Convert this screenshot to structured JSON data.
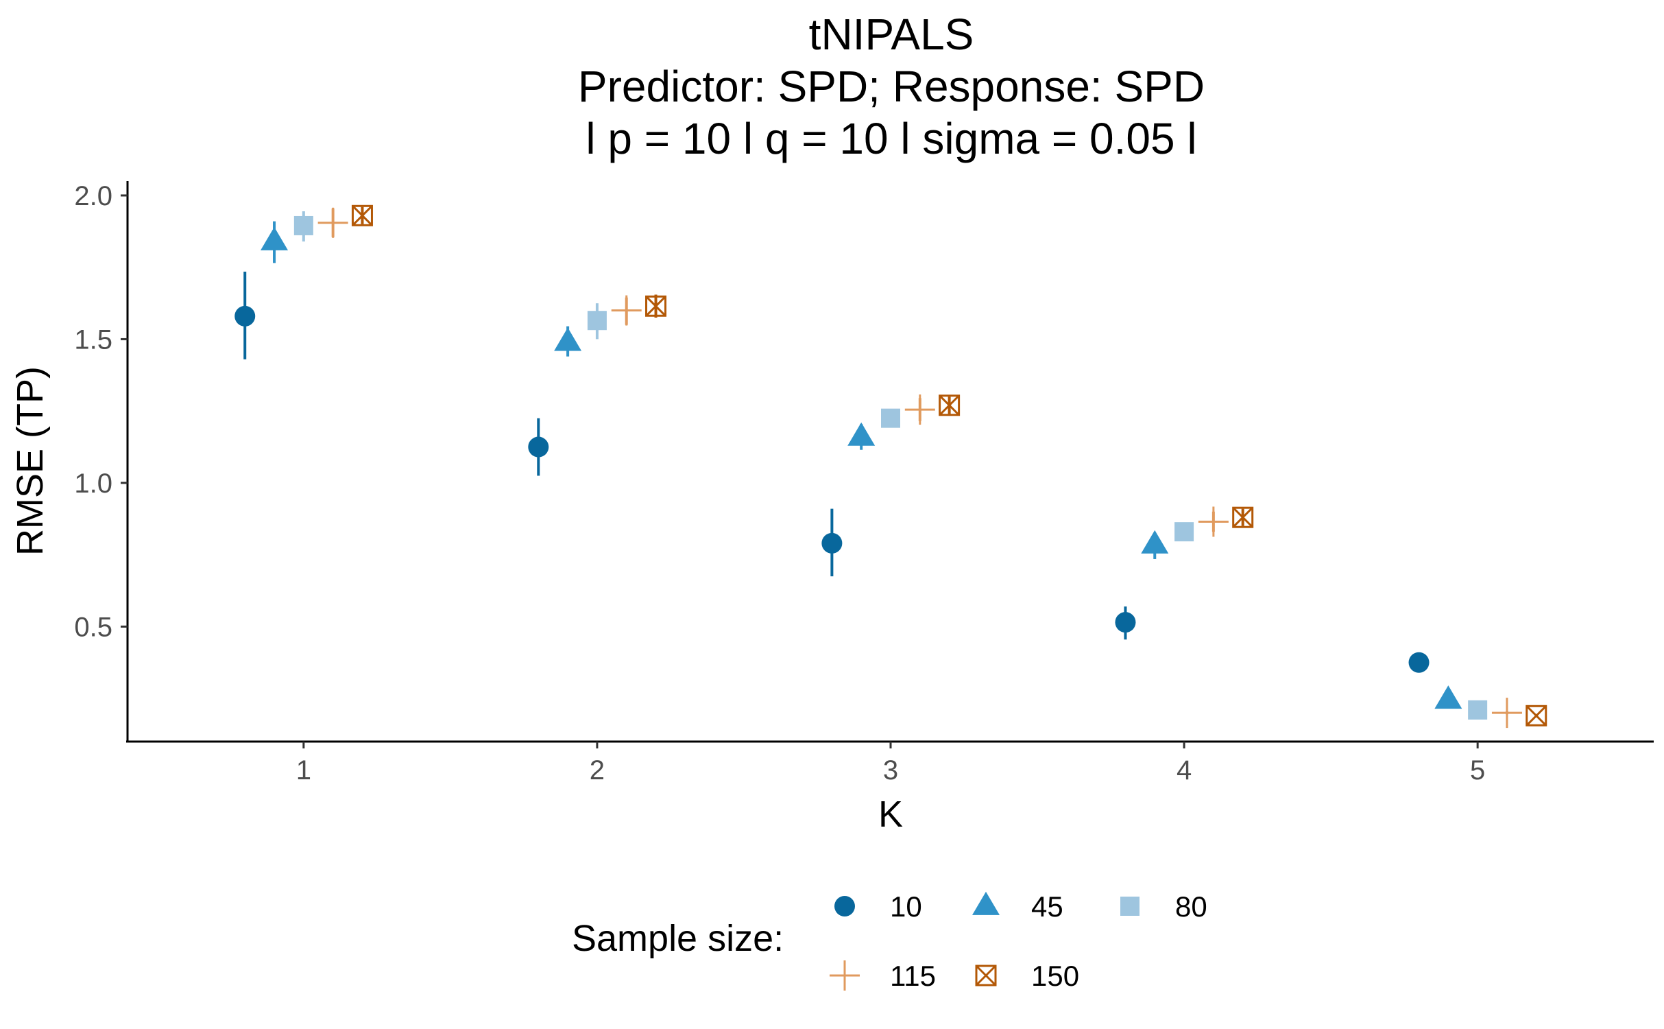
{
  "chart_data": {
    "type": "scatter",
    "title_lines": [
      "tNIPALS",
      "Predictor: SPD; Response: SPD",
      "l p = 10 l q = 10 l sigma = 0.05 l"
    ],
    "xlabel": "K",
    "ylabel": "RMSE (TP)",
    "x_ticks": [
      "1",
      "2",
      "3",
      "4",
      "5"
    ],
    "y_ticks": [
      "0.5",
      "1.0",
      "1.5",
      "2.0"
    ],
    "xlim": [
      0.4,
      5.6
    ],
    "ylim": [
      0.1,
      2.05
    ],
    "dodge_offsets": [
      -0.2,
      -0.1,
      0.0,
      0.1,
      0.2
    ],
    "legend_title": "Sample size:",
    "legend_position": "bottom",
    "grid": false,
    "series": [
      {
        "name": "10",
        "shape": "circle",
        "color": "#08679c",
        "values": [
          1.58,
          1.125,
          0.79,
          0.515,
          0.375
        ],
        "error_low": [
          1.43,
          1.025,
          0.675,
          0.455,
          0.36
        ],
        "error_high": [
          1.735,
          1.225,
          0.91,
          0.57,
          0.39
        ]
      },
      {
        "name": "45",
        "shape": "triangle",
        "color": "#2f92c8",
        "values": [
          1.84,
          1.49,
          1.16,
          0.785,
          0.245
        ],
        "error_low": [
          1.765,
          1.44,
          1.115,
          0.735,
          0.24
        ],
        "error_high": [
          1.91,
          1.545,
          1.205,
          0.82,
          0.25
        ]
      },
      {
        "name": "80",
        "shape": "square",
        "color": "#9ec5df",
        "values": [
          1.895,
          1.565,
          1.225,
          0.83,
          0.21
        ],
        "error_low": [
          1.84,
          1.5,
          1.195,
          0.8,
          0.205
        ],
        "error_high": [
          1.945,
          1.625,
          1.255,
          0.855,
          0.215
        ]
      },
      {
        "name": "115",
        "shape": "plus",
        "color": "#e09a5e",
        "values": [
          1.905,
          1.6,
          1.255,
          0.865,
          0.2
        ],
        "error_low": [
          1.855,
          1.55,
          1.215,
          0.83,
          0.195
        ],
        "error_high": [
          1.955,
          1.645,
          1.295,
          0.9,
          0.205
        ]
      },
      {
        "name": "150",
        "shape": "boxed-x",
        "color": "#b35806",
        "values": [
          1.93,
          1.615,
          1.27,
          0.88,
          0.19
        ],
        "error_low": [
          1.9,
          1.575,
          1.24,
          0.85,
          0.185
        ],
        "error_high": [
          1.96,
          1.655,
          1.3,
          0.91,
          0.195
        ]
      }
    ]
  }
}
